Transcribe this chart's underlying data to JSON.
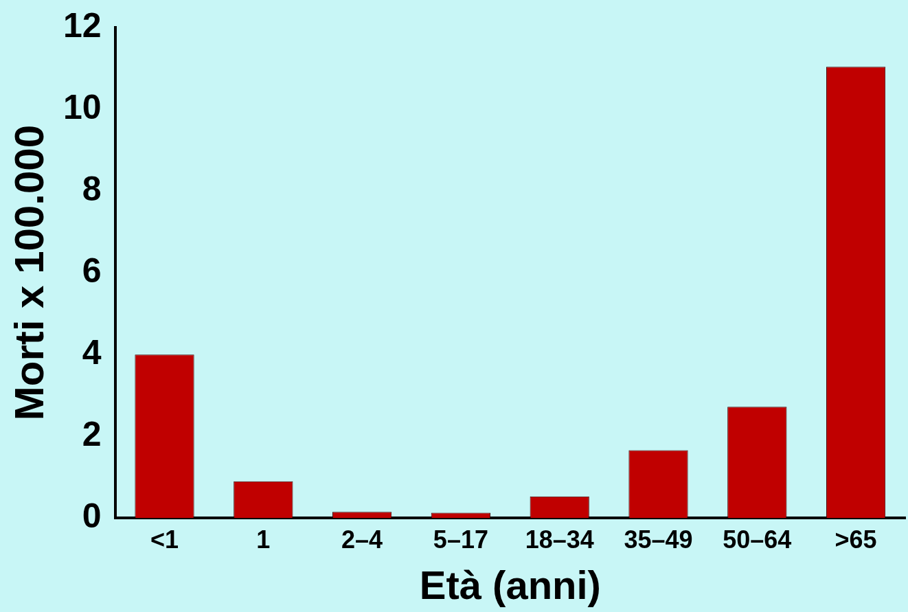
{
  "chart_data": {
    "type": "bar",
    "xlabel": "Età (anni)",
    "ylabel": "Morti x 100.000",
    "categories": [
      "<1",
      "1",
      "2–4",
      "5–17",
      "18–34",
      "35–49",
      "50–64",
      ">65"
    ],
    "values": [
      4.0,
      0.9,
      0.15,
      0.13,
      0.53,
      1.66,
      2.72,
      11.04
    ],
    "color": "#c00000",
    "ylim": [
      0,
      12
    ],
    "yticks": [
      0,
      2,
      4,
      6,
      8,
      10,
      12
    ],
    "grid": false
  }
}
